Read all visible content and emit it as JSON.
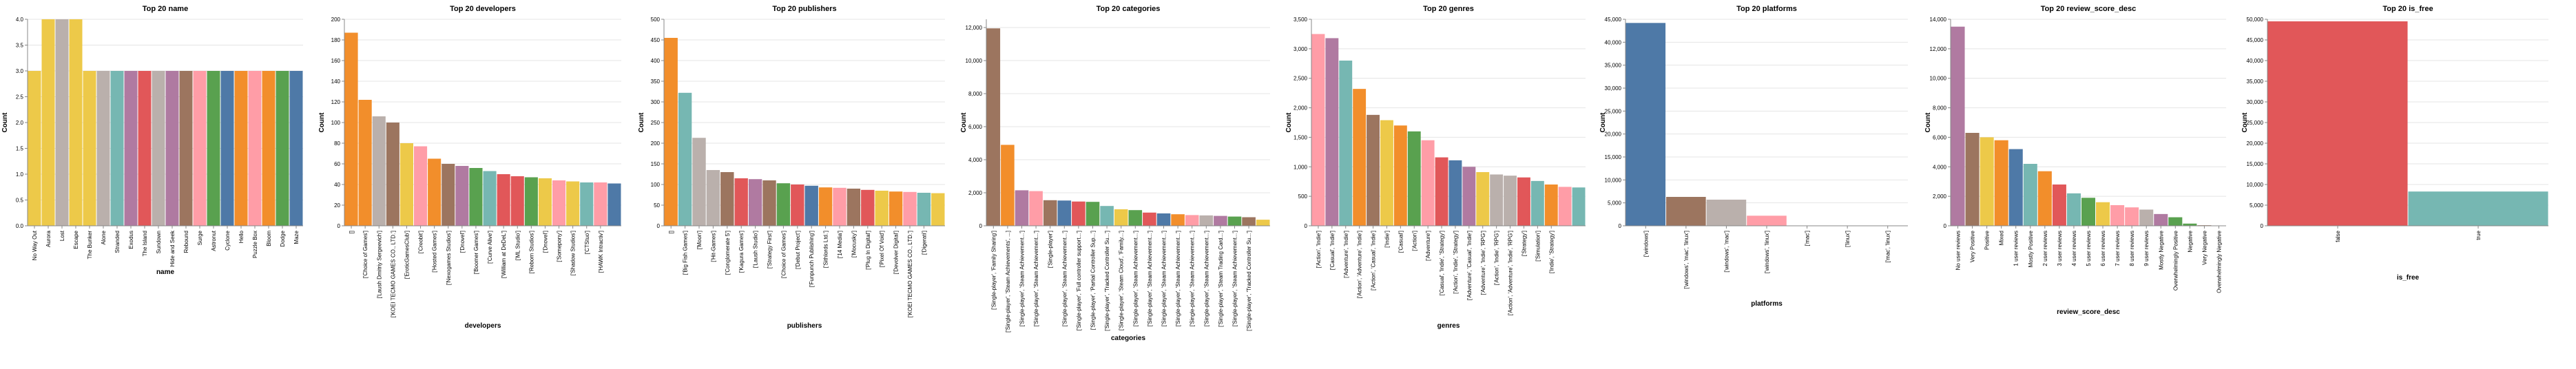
{
  "chart_data": [
    {
      "type": "bar",
      "title": "Top 20 name",
      "xlabel": "name",
      "ylabel": "Count",
      "ylim": [
        0,
        4
      ],
      "yticks": [
        "0.0",
        "0.5",
        "1.0",
        "1.5",
        "2.0",
        "2.5",
        "3.0",
        "3.5",
        "4.0"
      ],
      "categories": [
        "No Way Out",
        "Aurora",
        "Lost",
        "Escape",
        "The Bunker",
        "Alone",
        "Stranded",
        "Exodus",
        "The Island",
        "Sundown",
        "Hide and Seek",
        "Rebound",
        "Surge",
        "Astronut",
        "Cyclone",
        "Hello",
        "Puzzle Box",
        "Bloom",
        "Dodge",
        "Maze"
      ],
      "values": [
        3,
        4,
        4,
        4,
        3,
        3,
        3,
        3,
        3,
        3,
        3,
        3,
        3,
        3,
        3,
        3,
        3,
        3,
        3,
        3
      ],
      "colors": [
        "#edc949",
        "#edc949",
        "#bab0ac",
        "#edc949",
        "#edc949",
        "#bab0ac",
        "#76b7b2",
        "#b07aa1",
        "#e15759",
        "#bab0ac",
        "#af7aa1",
        "#9c755f",
        "#ff9da7",
        "#59a14f",
        "#4e79a7",
        "#f28e2b",
        "#ff9da7",
        "#f28e2b",
        "#59a14f",
        "#4e79a7"
      ]
    },
    {
      "type": "bar",
      "title": "Top 20 developers",
      "xlabel": "developers",
      "ylabel": "Count",
      "ylim": [
        0,
        200
      ],
      "yticks": [
        "0",
        "20",
        "40",
        "60",
        "80",
        "100",
        "120",
        "140",
        "160",
        "180",
        "200"
      ],
      "categories": [
        "[]",
        "['Choice of Games']",
        "['Laush Dmitriy Sergeevich']",
        "['KOEI TECMO GAMES CO., LTD.']",
        "['EroticGamesClub']",
        "['Creobit']",
        "['Hosted Games']",
        "['Nexogames Studios']",
        "['Dnovel']",
        "['Boomer Games']",
        "['Curve Alive']",
        "['William at DeDeL']",
        "['ML Studio']",
        "['Reborn Studios']",
        "['Dnovel']",
        "['Somepony']",
        "['Shadow Studios']",
        "['CTStuo']",
        "['HAWK Intractiv']",
        ""
      ],
      "values": [
        187,
        122,
        106,
        100,
        80,
        77,
        65,
        60,
        58,
        56,
        53,
        50,
        48,
        47,
        46,
        44,
        43,
        42,
        42,
        41
      ],
      "colors": [
        "#f28e2b",
        "#f28e2b",
        "#bab0ac",
        "#9c755f",
        "#edc949",
        "#ff9da7",
        "#f28e2b",
        "#9c755f",
        "#b07aa1",
        "#59a14f",
        "#76b7b2",
        "#e15759",
        "#e15759",
        "#59a14f",
        "#edc949",
        "#ff9da7",
        "#edc949",
        "#76b7b2",
        "#ff9da7",
        "#4e79a7"
      ]
    },
    {
      "type": "bar",
      "title": "Top 20 publishers",
      "xlabel": "publishers",
      "ylabel": "Count",
      "ylim": [
        0,
        500
      ],
      "yticks": [
        "0",
        "50",
        "100",
        "150",
        "200",
        "250",
        "300",
        "350",
        "400",
        "450",
        "500"
      ],
      "categories": [
        "[]",
        "['Big Fish Games']",
        "['Moon']",
        "['Hit-Games']",
        "['Conglomerate 5']",
        "['Kagura Games']",
        "['Laush Studio']",
        "['Strategy First']",
        "['Choice of Games']",
        "['Debut Project']",
        "['Funpunch Publishing']",
        "['Sithlords Ltd.']",
        "['14 Media']",
        "['Mocusky']",
        "['Plug In Digital']",
        "['Pixel Of Void']",
        "['Devolver Digital']",
        "['KOEI TECMO GAMES CO., LTD.']",
        "['Digerati']",
        ""
      ],
      "values": [
        455,
        322,
        213,
        135,
        130,
        115,
        113,
        110,
        103,
        100,
        97,
        93,
        92,
        90,
        87,
        85,
        83,
        82,
        80,
        79
      ],
      "colors": [
        "#f28e2b",
        "#76b7b2",
        "#bab0ac",
        "#bab0ac",
        "#9c755f",
        "#e15759",
        "#b07aa1",
        "#9c755f",
        "#59a14f",
        "#e15759",
        "#4e79a7",
        "#f28e2b",
        "#ff9da7",
        "#9c755f",
        "#e15759",
        "#edc949",
        "#f28e2b",
        "#ff9da7",
        "#76b7b2",
        "#edc949"
      ]
    },
    {
      "type": "bar",
      "title": "Top 20 categories",
      "xlabel": "categories",
      "ylabel": "Count",
      "ylim": [
        0,
        12500
      ],
      "yticks": [
        "0",
        "2,000",
        "4,000",
        "6,000",
        "8,000",
        "10,000",
        "12,000"
      ],
      "ytick_values": [
        0,
        2000,
        4000,
        6000,
        8000,
        10000,
        12000
      ],
      "categories": [
        "['Single-player', 'Family Sharing']",
        "['Single-player', 'Steam Achievements', ...]",
        "['Single-player', 'Steam Achievement...']",
        "['Single-player', 'Steam Achievement...']",
        "['Single-player']",
        "['Single-player', 'Steam Achievement...']",
        "['Single-player', 'Full controller support...']",
        "['Single-player', 'Partial Controller Sup...']",
        "['Single-player', 'Tracked Controller Su...']",
        "['Single-player', 'Steam Cloud', 'Family...']",
        "['Single-player', 'Steam Achievement...']",
        "['Single-player', 'Steam Achievement...']",
        "['Single-player', 'Steam Achievement...']",
        "['Single-player', 'Steam Achievement...']",
        "['Single-player', 'Steam Achievement...']",
        "['Single-player', 'Steam Achievement...']",
        "['Single-player', 'Steam Trading Card...']",
        "['Single-player', 'Steam Achievement...']",
        "['Single-player', 'Tracked Controller Su...']",
        ""
      ],
      "values": [
        11950,
        4900,
        2150,
        2100,
        1550,
        1530,
        1470,
        1450,
        1200,
        1000,
        950,
        800,
        750,
        700,
        650,
        630,
        600,
        560,
        520,
        370
      ],
      "colors": [
        "#9c755f",
        "#f28e2b",
        "#b07aa1",
        "#ff9da7",
        "#9c755f",
        "#4e79a7",
        "#e15759",
        "#59a14f",
        "#76b7b2",
        "#edc949",
        "#59a14f",
        "#e15759",
        "#4e79a7",
        "#f28e2b",
        "#ff9da7",
        "#bab0ac",
        "#b07aa1",
        "#59a14f",
        "#9c755f",
        "#edc949"
      ]
    },
    {
      "type": "bar",
      "title": "Top 20 genres",
      "xlabel": "genres",
      "ylabel": "Count",
      "ylim": [
        0,
        3500
      ],
      "yticks": [
        "0",
        "500",
        "1,000",
        "1,500",
        "2,000",
        "2,500",
        "3,000",
        "3,500"
      ],
      "ytick_values": [
        0,
        500,
        1000,
        1500,
        2000,
        2500,
        3000,
        3500
      ],
      "categories": [
        "['Action', 'Indie']",
        "['Casual', 'Indie']",
        "['Adventure', 'Indie']",
        "['Action', 'Adventure', 'Indie']",
        "['Action', 'Casual', 'Indie']",
        "['Indie']",
        "['Casual']",
        "['Action']",
        "['Adventure']",
        "['Casual', 'Indie', 'Strategy']",
        "['Action', 'Indie', 'Strategy']",
        "['Adventure', 'Casual', 'Indie']",
        "['Adventure', 'Indie', 'RPG']",
        "['Action', 'Indie', 'RPG']",
        "['Action', 'Adventure', 'Indie', 'RPG']",
        "['Strategy']",
        "['Simulation']",
        "['Indie', 'Strategy']",
        "",
        ""
      ],
      "values": [
        3250,
        3180,
        2800,
        2320,
        1880,
        1790,
        1700,
        1600,
        1450,
        1160,
        1110,
        1000,
        910,
        870,
        850,
        820,
        760,
        700,
        660,
        650
      ],
      "colors": [
        "#ff9da7",
        "#b07aa1",
        "#76b7b2",
        "#f28e2b",
        "#9c755f",
        "#edc949",
        "#f28e2b",
        "#59a14f",
        "#ff9da7",
        "#e15759",
        "#4e79a7",
        "#b07aa1",
        "#edc949",
        "#bab0ac",
        "#bab0ac",
        "#e15759",
        "#76b7b2",
        "#f28e2b",
        "#ff9da7",
        "#76b7b2"
      ]
    },
    {
      "type": "bar",
      "title": "Top 20 platforms",
      "xlabel": "platforms",
      "ylabel": "Count",
      "ylim": [
        0,
        45000
      ],
      "yticks": [
        "0",
        "5,000",
        "10,000",
        "15,000",
        "20,000",
        "25,000",
        "30,000",
        "35,000",
        "40,000",
        "45,000"
      ],
      "ytick_values": [
        0,
        5000,
        10000,
        15000,
        20000,
        25000,
        30000,
        35000,
        40000,
        45000
      ],
      "categories": [
        "['windows']",
        "['windows', 'mac', 'linux']",
        "['windows', 'mac']",
        "['windows', 'linux']",
        "['mac']",
        "['linux']",
        "['mac', 'linux']"
      ],
      "values": [
        44200,
        6300,
        5700,
        2200,
        60,
        40,
        30
      ],
      "colors": [
        "#4e79a7",
        "#9c755f",
        "#bab0ac",
        "#ff9da7",
        "#4e79a7",
        "#9c755f",
        "#bab0ac"
      ]
    },
    {
      "type": "bar",
      "title": "Top 20 review_score_desc",
      "xlabel": "review_score_desc",
      "ylabel": "Count",
      "ylim": [
        0,
        14000
      ],
      "yticks": [
        "0",
        "2,000",
        "4,000",
        "6,000",
        "8,000",
        "10,000",
        "12,000",
        "14,000"
      ],
      "ytick_values": [
        0,
        2000,
        4000,
        6000,
        8000,
        10000,
        12000,
        14000
      ],
      "categories": [
        "No user reviews",
        "Very Positive",
        "Positive",
        "Mixed",
        "1 user reviews",
        "Mostly Positive",
        "2 user reviews",
        "3 user reviews",
        "4 user reviews",
        "5 user reviews",
        "6 user reviews",
        "7 user reviews",
        "8 user reviews",
        "9 user reviews",
        "Mostly Negative",
        "Overwhelmingly Positive",
        "Negative",
        "Very Negative",
        "Overwhelmingly Negative"
      ],
      "values": [
        13500,
        6300,
        6000,
        5800,
        5200,
        4200,
        3700,
        2800,
        2200,
        1900,
        1600,
        1400,
        1250,
        1100,
        800,
        580,
        150,
        40,
        10
      ],
      "colors": [
        "#b07aa1",
        "#9c755f",
        "#edc949",
        "#f28e2b",
        "#4e79a7",
        "#76b7b2",
        "#f28e2b",
        "#e15759",
        "#76b7b2",
        "#59a14f",
        "#edc949",
        "#ff9da7",
        "#ff9da7",
        "#bab0ac",
        "#b07aa1",
        "#59a14f",
        "#59a14f",
        "#9c755f",
        "#4e79a7"
      ]
    },
    {
      "type": "bar",
      "title": "Top 20 is_free",
      "xlabel": "is_free",
      "ylabel": "Count",
      "ylim": [
        0,
        50000
      ],
      "yticks": [
        "0",
        "5,000",
        "10,000",
        "15,000",
        "20,000",
        "25,000",
        "30,000",
        "35,000",
        "40,000",
        "45,000",
        "50,000"
      ],
      "ytick_values": [
        0,
        5000,
        10000,
        15000,
        20000,
        25000,
        30000,
        35000,
        40000,
        45000,
        50000
      ],
      "categories": [
        "false",
        "true"
      ],
      "values": [
        49500,
        8300
      ],
      "colors": [
        "#e15759",
        "#76b7b2"
      ]
    }
  ]
}
